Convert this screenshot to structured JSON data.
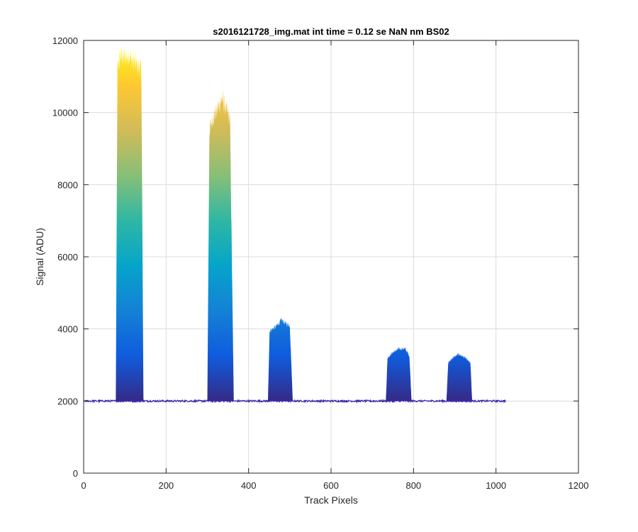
{
  "chart_data": {
    "type": "area",
    "title": "s2016121728_img.mat int time = 0.12 se  NaN nm BS02",
    "xlabel": "Track Pixels",
    "ylabel": "Signal (ADU)",
    "xlim": [
      0,
      1200
    ],
    "ylim": [
      0,
      12000
    ],
    "xticks": [
      0,
      200,
      400,
      600,
      800,
      1000,
      1200
    ],
    "yticks": [
      0,
      2000,
      4000,
      6000,
      8000,
      10000,
      12000
    ],
    "grid": true,
    "colormap": "parula",
    "baseline": 2000,
    "x_extent": [
      0,
      1024
    ],
    "peaks": [
      {
        "x_start": 78,
        "x_end": 145,
        "values": [
          [
            78,
            2050
          ],
          [
            82,
            11200
          ],
          [
            90,
            11600
          ],
          [
            100,
            11500
          ],
          [
            110,
            11600
          ],
          [
            120,
            11400
          ],
          [
            130,
            11300
          ],
          [
            140,
            11200
          ],
          [
            145,
            2050
          ]
        ]
      },
      {
        "x_start": 300,
        "x_end": 364,
        "values": [
          [
            300,
            2050
          ],
          [
            305,
            9500
          ],
          [
            315,
            9900
          ],
          [
            325,
            10100
          ],
          [
            335,
            10400
          ],
          [
            345,
            10100
          ],
          [
            355,
            9800
          ],
          [
            364,
            2050
          ]
        ]
      },
      {
        "x_start": 447,
        "x_end": 507,
        "values": [
          [
            447,
            2050
          ],
          [
            451,
            3950
          ],
          [
            465,
            4050
          ],
          [
            480,
            4250
          ],
          [
            490,
            4150
          ],
          [
            500,
            4100
          ],
          [
            507,
            2050
          ]
        ]
      },
      {
        "x_start": 733,
        "x_end": 795,
        "values": [
          [
            733,
            2050
          ],
          [
            737,
            3200
          ],
          [
            750,
            3350
          ],
          [
            765,
            3450
          ],
          [
            780,
            3450
          ],
          [
            790,
            3250
          ],
          [
            795,
            2050
          ]
        ]
      },
      {
        "x_start": 880,
        "x_end": 942,
        "values": [
          [
            880,
            2050
          ],
          [
            884,
            3050
          ],
          [
            895,
            3200
          ],
          [
            910,
            3300
          ],
          [
            925,
            3200
          ],
          [
            938,
            3050
          ],
          [
            942,
            2050
          ]
        ]
      }
    ]
  },
  "colors": {
    "axis": "#262626",
    "grid": "#dcdcdc",
    "baseline": "#3e26a8",
    "parula": [
      "#352a87",
      "#0f5cdd",
      "#1481d6",
      "#06a4ca",
      "#2eb7a4",
      "#87bf77",
      "#d1bb59",
      "#fec832",
      "#f9fb0e"
    ]
  }
}
